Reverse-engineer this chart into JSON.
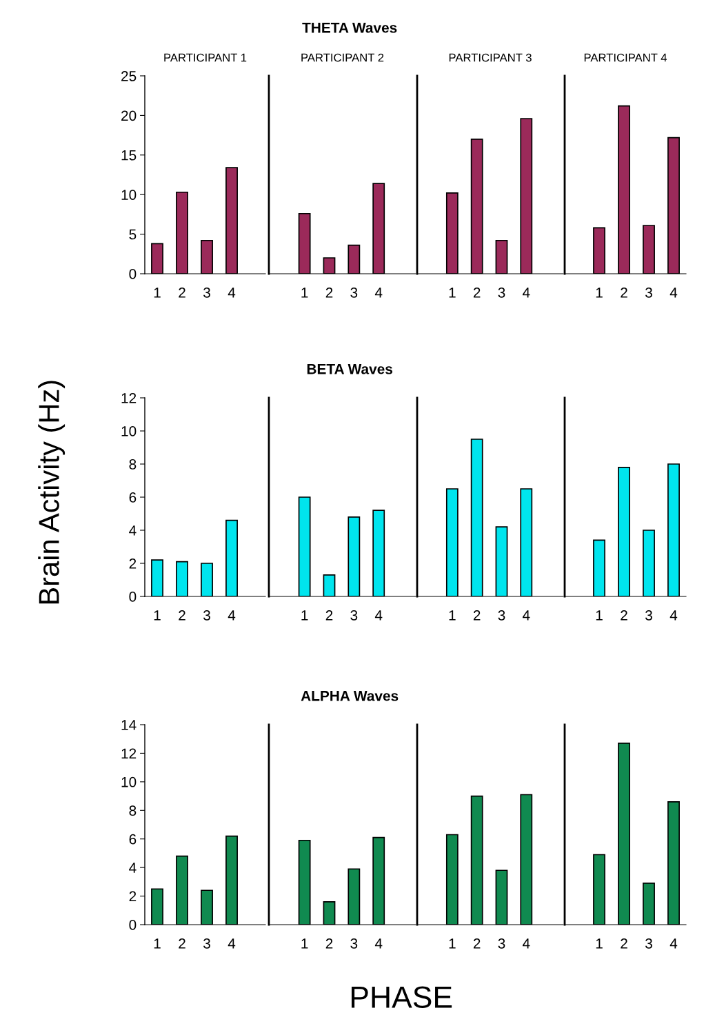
{
  "chart_data": [
    {
      "type": "bar",
      "subtitle": "PARTICIPANT 1",
      "categories": [
        "1",
        "2",
        "3",
        "4"
      ],
      "values": [
        3.8,
        10.3,
        4.2,
        13.4
      ],
      "color": "#9b2a5a",
      "ylim": [
        0,
        25
      ],
      "yticks": [
        0,
        5,
        10,
        15,
        20,
        25
      ],
      "grid": false,
      "legend": false
    },
    {
      "type": "bar",
      "title": "THETA Waves",
      "subtitle": "PARTICIPANT 2",
      "categories": [
        "1",
        "2",
        "3",
        "4"
      ],
      "values": [
        7.6,
        2.0,
        3.6,
        11.4
      ],
      "color": "#9b2a5a",
      "ylim": [
        0,
        25
      ],
      "yticks": [
        0,
        5,
        10,
        15,
        20,
        25
      ],
      "tick_labels": "x",
      "grid": false,
      "legend": false
    },
    {
      "type": "bar",
      "subtitle": "PARTICIPANT 3",
      "categories": [
        "1",
        "2",
        "3",
        "4"
      ],
      "values": [
        10.2,
        17.0,
        4.2,
        19.6
      ],
      "color": "#9b2a5a",
      "ylim": [
        0,
        25
      ],
      "yticks": [
        0,
        5,
        10,
        15,
        20,
        25
      ],
      "tick_labels": "x",
      "grid": false,
      "legend": false
    },
    {
      "type": "bar",
      "subtitle": "PARTICIPANT 4",
      "categories": [
        "1",
        "2",
        "3",
        "4"
      ],
      "values": [
        5.8,
        21.2,
        6.1,
        17.2
      ],
      "color": "#9b2a5a",
      "ylim": [
        0,
        25
      ],
      "yticks": [
        0,
        5,
        10,
        15,
        20,
        25
      ],
      "tick_labels": "x",
      "grid": false,
      "legend": false
    },
    {
      "type": "bar",
      "ylabel": "Brain Activity (Hz)",
      "categories": [
        "1",
        "2",
        "3",
        "4"
      ],
      "values": [
        2.2,
        2.1,
        2.0,
        4.6
      ],
      "color": "#00e5ee",
      "ylim": [
        0,
        12
      ],
      "yticks": [
        0,
        2,
        4,
        6,
        8,
        10,
        12
      ],
      "grid": false,
      "legend": false
    },
    {
      "type": "bar",
      "title": "BETA Waves",
      "categories": [
        "1",
        "2",
        "3",
        "4"
      ],
      "values": [
        6.0,
        1.3,
        4.8,
        5.2
      ],
      "color": "#00e5ee",
      "ylim": [
        0,
        12
      ],
      "yticks": [
        0,
        2,
        4,
        6,
        8,
        10,
        12
      ],
      "tick_labels": "x",
      "grid": false,
      "legend": false
    },
    {
      "type": "bar",
      "categories": [
        "1",
        "2",
        "3",
        "4"
      ],
      "values": [
        6.5,
        9.5,
        4.2,
        6.5
      ],
      "color": "#00e5ee",
      "ylim": [
        0,
        12
      ],
      "yticks": [
        0,
        2,
        4,
        6,
        8,
        10,
        12
      ],
      "tick_labels": "x",
      "grid": false,
      "legend": false
    },
    {
      "type": "bar",
      "categories": [
        "1",
        "2",
        "3",
        "4"
      ],
      "values": [
        3.4,
        7.8,
        4.0,
        8.0
      ],
      "color": "#00e5ee",
      "ylim": [
        0,
        12
      ],
      "yticks": [
        0,
        2,
        4,
        6,
        8,
        10,
        12
      ],
      "tick_labels": "x",
      "grid": false,
      "legend": false
    },
    {
      "type": "bar",
      "categories": [
        "1",
        "2",
        "3",
        "4"
      ],
      "values": [
        2.5,
        4.8,
        2.4,
        6.2
      ],
      "color": "#108a50",
      "ylim": [
        0,
        14
      ],
      "yticks": [
        0,
        2,
        4,
        6,
        8,
        10,
        12,
        14
      ],
      "grid": false,
      "legend": false
    },
    {
      "type": "bar",
      "title": "ALPHA Waves",
      "xlabel": "PHASE",
      "categories": [
        "1",
        "2",
        "3",
        "4"
      ],
      "values": [
        5.9,
        1.6,
        3.9,
        6.1
      ],
      "color": "#108a50",
      "ylim": [
        0,
        14
      ],
      "yticks": [
        0,
        2,
        4,
        6,
        8,
        10,
        12,
        14
      ],
      "tick_labels": "x",
      "grid": false,
      "legend": false
    },
    {
      "type": "bar",
      "categories": [
        "1",
        "2",
        "3",
        "4"
      ],
      "values": [
        6.3,
        9.0,
        3.8,
        9.1
      ],
      "color": "#108a50",
      "ylim": [
        0,
        14
      ],
      "yticks": [
        0,
        2,
        4,
        6,
        8,
        10,
        12,
        14
      ],
      "tick_labels": "x",
      "grid": false,
      "legend": false
    },
    {
      "type": "bar",
      "categories": [
        "1",
        "2",
        "3",
        "4"
      ],
      "values": [
        4.9,
        12.7,
        2.9,
        8.6
      ],
      "color": "#108a50",
      "ylim": [
        0,
        14
      ],
      "yticks": [
        0,
        2,
        4,
        6,
        8,
        10,
        12,
        14
      ],
      "tick_labels": "x",
      "grid": false,
      "legend": false
    }
  ]
}
